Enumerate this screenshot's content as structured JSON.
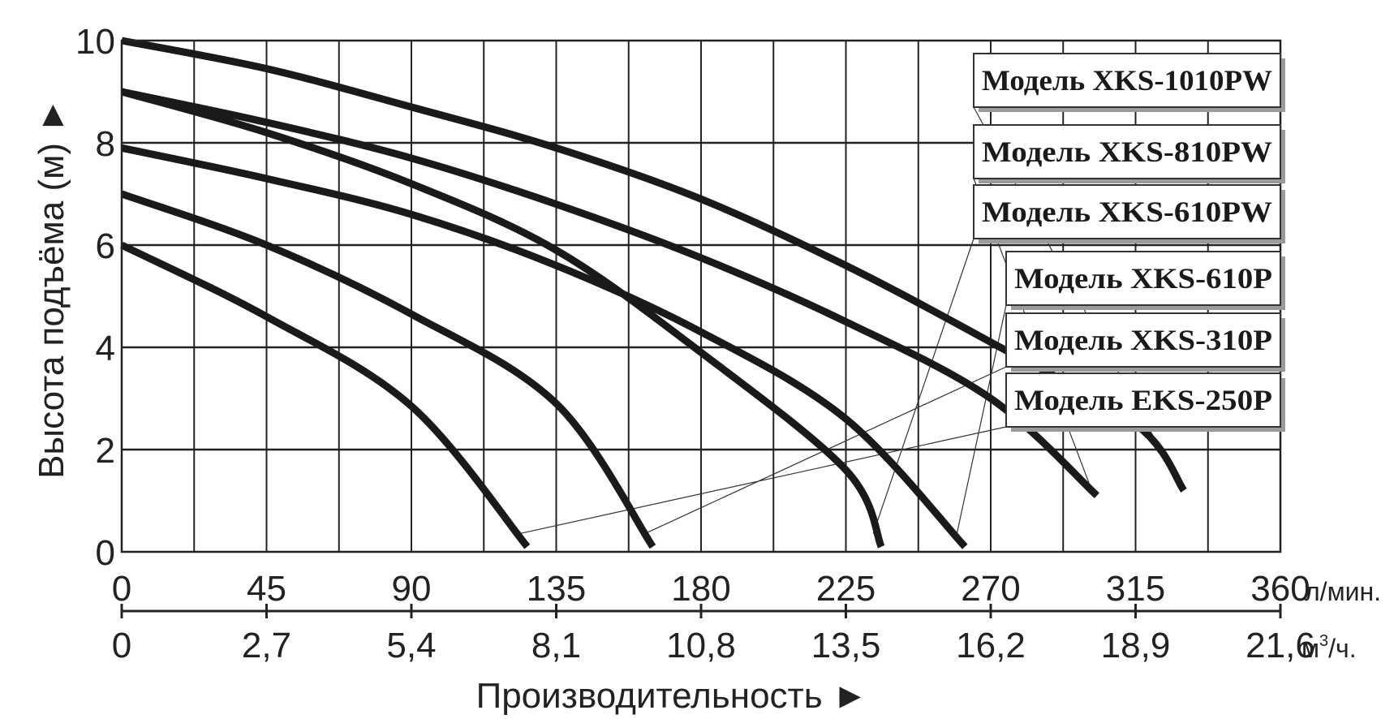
{
  "chart_data": {
    "type": "line",
    "title": "",
    "ylabel": "Высота подъёма (м)",
    "xlabel": "Производительность",
    "arrow_glyph": "►",
    "ylim": [
      0,
      10
    ],
    "xlim": [
      0,
      360
    ],
    "y_ticks": [
      "0",
      "2",
      "4",
      "6",
      "8",
      "10"
    ],
    "x_ticks_lmin": [
      "0",
      "45",
      "90",
      "135",
      "180",
      "225",
      "270",
      "315",
      "360"
    ],
    "x_unit_lmin": "л/мин.",
    "x_ticks_m3h": [
      "0",
      "2,7",
      "5,4",
      "8,1",
      "10,8",
      "13,5",
      "16,2",
      "18,9",
      "21,6"
    ],
    "x_unit_m3h_prefix": "м",
    "x_unit_m3h_sup": "3",
    "x_unit_m3h_suffix": "/ч.",
    "grid": true,
    "legend_placement": "right",
    "series_color": "#1a1a1a",
    "series": [
      {
        "name": "Модель XKS-1010PW",
        "points": [
          [
            0,
            10.0
          ],
          [
            45,
            9.45
          ],
          [
            90,
            8.7
          ],
          [
            135,
            7.9
          ],
          [
            180,
            6.9
          ],
          [
            225,
            5.6
          ],
          [
            270,
            4.1
          ],
          [
            315,
            2.5
          ],
          [
            330,
            1.2
          ]
        ]
      },
      {
        "name": "Модель XKS-810PW",
        "points": [
          [
            0,
            9.0
          ],
          [
            45,
            8.4
          ],
          [
            90,
            7.7
          ],
          [
            135,
            6.8
          ],
          [
            180,
            5.75
          ],
          [
            225,
            4.5
          ],
          [
            270,
            3.0
          ],
          [
            303,
            1.1
          ]
        ]
      },
      {
        "name": "Модель XKS-610PW",
        "points": [
          [
            0,
            9.0
          ],
          [
            45,
            8.2
          ],
          [
            90,
            7.2
          ],
          [
            135,
            5.9
          ],
          [
            180,
            3.9
          ],
          [
            225,
            1.6
          ],
          [
            236,
            0.1
          ]
        ]
      },
      {
        "name": "Модель XKS-610P",
        "points": [
          [
            0,
            7.9
          ],
          [
            45,
            7.3
          ],
          [
            90,
            6.6
          ],
          [
            135,
            5.6
          ],
          [
            180,
            4.3
          ],
          [
            225,
            2.6
          ],
          [
            262,
            0.1
          ]
        ]
      },
      {
        "name": "Модель XKS-310P",
        "points": [
          [
            0,
            7.0
          ],
          [
            45,
            6.0
          ],
          [
            90,
            4.65
          ],
          [
            135,
            2.9
          ],
          [
            165,
            0.1
          ]
        ]
      },
      {
        "name": "Модель EKS-250P",
        "points": [
          [
            0,
            6.0
          ],
          [
            45,
            4.6
          ],
          [
            90,
            2.85
          ],
          [
            126,
            0.1
          ]
        ]
      }
    ]
  }
}
